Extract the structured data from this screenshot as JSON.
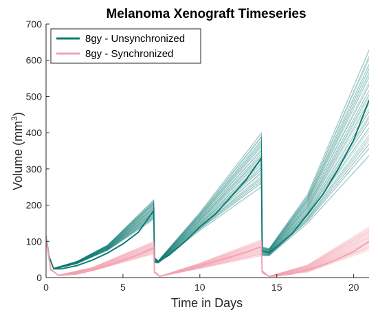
{
  "chart_data": {
    "type": "line",
    "title": "Melanoma Xenograft Timeseries",
    "xlabel": "Time in Days",
    "ylabel": {
      "prefix": "Volume (mm",
      "superscript": "3",
      "suffix": ")"
    },
    "xlim": [
      0,
      21
    ],
    "ylim": [
      0,
      700
    ],
    "xticks": [
      0,
      5,
      10,
      15,
      20
    ],
    "yticks": [
      0,
      100,
      200,
      300,
      400,
      500,
      600,
      700
    ],
    "grid": false,
    "legend_position": "top-left",
    "series": [
      {
        "name": "8gy - Unsynchronized",
        "color": "#0f7a73",
        "ensemble_envelope": [
          [
            0,
            118,
            108
          ],
          [
            0.2,
            60,
            55
          ],
          [
            0.5,
            26,
            23
          ],
          [
            2,
            45,
            38
          ],
          [
            4,
            90,
            75
          ],
          [
            7,
            215,
            160
          ],
          [
            7.05,
            55,
            40
          ],
          [
            7.3,
            47,
            40
          ],
          [
            10,
            180,
            130
          ],
          [
            14,
            400,
            250
          ],
          [
            14.05,
            85,
            60
          ],
          [
            14.5,
            80,
            60
          ],
          [
            17,
            230,
            150
          ],
          [
            21,
            630,
            335
          ]
        ],
        "median": [
          [
            0,
            113
          ],
          [
            0.2,
            57
          ],
          [
            0.5,
            24
          ],
          [
            1,
            24
          ],
          [
            2,
            33
          ],
          [
            3,
            48
          ],
          [
            4,
            68
          ],
          [
            5,
            93
          ],
          [
            6,
            125
          ],
          [
            7,
            185
          ],
          [
            7.05,
            48
          ],
          [
            7.3,
            44
          ],
          [
            8,
            62
          ],
          [
            9,
            98
          ],
          [
            10,
            140
          ],
          [
            11,
            175
          ],
          [
            12,
            222
          ],
          [
            13,
            270
          ],
          [
            14,
            330
          ],
          [
            14.05,
            73
          ],
          [
            14.5,
            69
          ],
          [
            15,
            85
          ],
          [
            16,
            122
          ],
          [
            17,
            175
          ],
          [
            18,
            230
          ],
          [
            19,
            300
          ],
          [
            20,
            380
          ],
          [
            21,
            490
          ]
        ]
      },
      {
        "name": "8gy - Synchronized",
        "color": "#f4a3b3",
        "ensemble_envelope": [
          [
            0,
            118,
            95
          ],
          [
            0.3,
            25,
            20
          ],
          [
            0.8,
            7,
            6
          ],
          [
            3,
            28,
            18
          ],
          [
            7,
            100,
            65
          ],
          [
            7.05,
            18,
            12
          ],
          [
            7.4,
            4,
            3
          ],
          [
            10,
            40,
            25
          ],
          [
            14,
            105,
            60
          ],
          [
            14.05,
            20,
            12
          ],
          [
            14.5,
            4,
            3
          ],
          [
            17,
            35,
            15
          ],
          [
            21,
            140,
            75
          ]
        ],
        "median": [
          [
            0,
            110
          ],
          [
            0.3,
            23
          ],
          [
            0.8,
            6
          ],
          [
            2,
            10
          ],
          [
            3,
            20
          ],
          [
            4,
            33
          ],
          [
            5,
            48
          ],
          [
            6,
            63
          ],
          [
            7,
            82
          ],
          [
            7.05,
            15
          ],
          [
            7.4,
            3
          ],
          [
            8,
            10
          ],
          [
            9,
            22
          ],
          [
            10,
            33
          ],
          [
            11,
            45
          ],
          [
            12,
            57
          ],
          [
            13,
            70
          ],
          [
            14,
            85
          ],
          [
            14.05,
            16
          ],
          [
            14.5,
            3
          ],
          [
            15,
            5
          ],
          [
            16,
            10
          ],
          [
            17,
            22
          ],
          [
            18,
            35
          ],
          [
            19,
            52
          ],
          [
            20,
            72
          ],
          [
            21,
            100
          ]
        ]
      }
    ]
  }
}
